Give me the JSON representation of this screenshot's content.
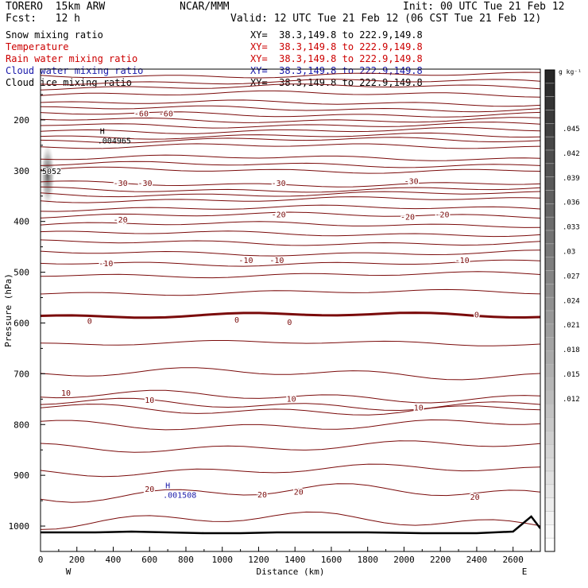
{
  "header": {
    "model": "TORERO  15km ARW",
    "center": "NCAR/MMM",
    "init": "Init: 00 UTC Tue 21 Feb 12",
    "fcst": "Fcst:   12 h",
    "valid": "Valid: 12 UTC Tue 21 Feb 12 (06 CST Tue 21 Feb 12)"
  },
  "legend": [
    {
      "label": "Snow mixing ratio",
      "xy": "XY=  38.3,149.8 to 222.9,149.8",
      "color": "#000000"
    },
    {
      "label": "Temperature",
      "xy": "XY=  38.3,149.8 to 222.9,149.8",
      "color": "#cc0000"
    },
    {
      "label": "Rain water mixing ratio",
      "xy": "XY=  38.3,149.8 to 222.9,149.8",
      "color": "#cc0000"
    },
    {
      "label": "Cloud water mixing ratio",
      "xy": "XY=  38.3,149.8 to 222.9,149.8",
      "color": "#1a1aaa"
    },
    {
      "label": "Cloud ice mixing ratio",
      "xy": "XY=  38.3,149.8 to 222.9,149.8",
      "color": "#000000"
    }
  ],
  "chart_data": {
    "type": "contour-cross-section",
    "xlabel": "Distance (km)",
    "ylabel": "Pressure (hPa)",
    "xlim": [
      0,
      2750
    ],
    "ylim": [
      1050,
      100
    ],
    "x_ticks": [
      0,
      200,
      400,
      600,
      800,
      1000,
      1200,
      1400,
      1600,
      1800,
      2000,
      2200,
      2400,
      2600
    ],
    "y_ticks": [
      200,
      300,
      400,
      500,
      600,
      700,
      800,
      900,
      1000
    ],
    "x_end_labels": {
      "left": "W",
      "right": "E"
    },
    "temperature_contour_color": "#7a0a0a",
    "isotherm_labels": [
      {
        "text": "-60",
        "x": 555,
        "p": 187
      },
      {
        "text": "-60",
        "x": 690,
        "p": 187
      },
      {
        "text": "-30",
        "x": 440,
        "p": 324
      },
      {
        "text": "-30",
        "x": 575,
        "p": 324
      },
      {
        "text": "-30",
        "x": 1310,
        "p": 324
      },
      {
        "text": "-30",
        "x": 2040,
        "p": 320
      },
      {
        "text": "-20",
        "x": 440,
        "p": 396
      },
      {
        "text": "-20",
        "x": 1310,
        "p": 386
      },
      {
        "text": "-20",
        "x": 2020,
        "p": 390
      },
      {
        "text": "-20",
        "x": 2210,
        "p": 386
      },
      {
        "text": "-10",
        "x": 360,
        "p": 482
      },
      {
        "text": "-10",
        "x": 1130,
        "p": 476
      },
      {
        "text": "-10",
        "x": 1300,
        "p": 476
      },
      {
        "text": "-10",
        "x": 2320,
        "p": 476
      },
      {
        "text": "0",
        "x": 270,
        "p": 595
      },
      {
        "text": "0",
        "x": 1080,
        "p": 593
      },
      {
        "text": "0",
        "x": 1370,
        "p": 598
      },
      {
        "text": "0",
        "x": 2400,
        "p": 583
      },
      {
        "text": "10",
        "x": 140,
        "p": 737
      },
      {
        "text": "10",
        "x": 600,
        "p": 751
      },
      {
        "text": "10",
        "x": 1380,
        "p": 749
      },
      {
        "text": "10",
        "x": 2080,
        "p": 766
      },
      {
        "text": "20",
        "x": 600,
        "p": 926
      },
      {
        "text": "20",
        "x": 1220,
        "p": 937
      },
      {
        "text": "20",
        "x": 1420,
        "p": 932
      },
      {
        "text": "20",
        "x": 2390,
        "p": 942
      }
    ],
    "maxima": [
      {
        "symbol": "H",
        "value": ".004965",
        "x": 340,
        "p": 240,
        "color": "#000000"
      },
      {
        "symbol": "H",
        "value": ".001508",
        "x": 700,
        "p": 938,
        "color": "#1a1aaa"
      }
    ],
    "snow_peak_label": "5052",
    "colorbar": {
      "unit": "g kg⁻¹",
      "ticks": [
        ".045",
        ".042",
        ".039",
        ".036",
        ".033",
        ".03",
        ".027",
        ".024",
        ".021",
        ".018",
        ".015",
        ".012"
      ]
    }
  }
}
